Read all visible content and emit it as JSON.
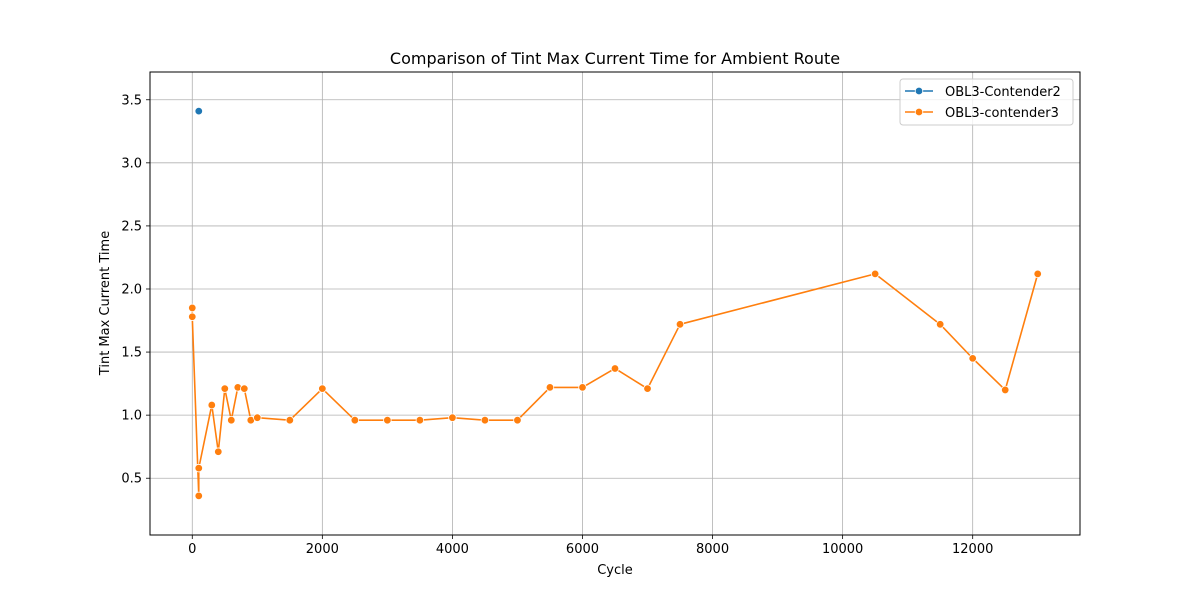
{
  "chart_data": {
    "type": "line",
    "title": "Comparison of Tint Max Current Time for Ambient Route",
    "xlabel": "Cycle",
    "ylabel": "Tint Max Current Time",
    "xlim": [
      -650,
      13650
    ],
    "ylim": [
      0.05,
      3.72
    ],
    "xticks": [
      0,
      2000,
      4000,
      6000,
      8000,
      10000,
      12000
    ],
    "xtick_labels": [
      "0",
      "2000",
      "4000",
      "6000",
      "8000",
      "10000",
      "12000"
    ],
    "yticks": [
      0.5,
      1.0,
      1.5,
      2.0,
      2.5,
      3.0,
      3.5
    ],
    "ytick_labels": [
      "0.5",
      "1.0",
      "1.5",
      "2.0",
      "2.5",
      "3.0",
      "3.5"
    ],
    "grid": true,
    "legend_position": "top-right",
    "series": [
      {
        "name": "OBL3-Contender2",
        "color": "#1f77b4",
        "points": [
          [
            100,
            3.41
          ]
        ]
      },
      {
        "name": "OBL3-contender3",
        "color": "#ff7f0e",
        "points": [
          [
            0,
            1.85
          ],
          [
            0,
            1.78
          ],
          [
            100,
            0.36
          ],
          [
            100,
            0.58
          ],
          [
            300,
            1.08
          ],
          [
            400,
            0.71
          ],
          [
            500,
            1.21
          ],
          [
            600,
            0.96
          ],
          [
            700,
            1.22
          ],
          [
            800,
            1.21
          ],
          [
            900,
            0.96
          ],
          [
            1000,
            0.98
          ],
          [
            1500,
            0.96
          ],
          [
            2000,
            1.21
          ],
          [
            2500,
            0.96
          ],
          [
            3000,
            0.96
          ],
          [
            3500,
            0.96
          ],
          [
            4000,
            0.98
          ],
          [
            4500,
            0.96
          ],
          [
            5000,
            0.96
          ],
          [
            5500,
            1.22
          ],
          [
            6000,
            1.22
          ],
          [
            6500,
            1.37
          ],
          [
            7000,
            1.21
          ],
          [
            7500,
            1.72
          ],
          [
            10500,
            2.12
          ],
          [
            11500,
            1.72
          ],
          [
            12000,
            1.45
          ],
          [
            12500,
            1.2
          ],
          [
            13000,
            2.12
          ]
        ]
      }
    ]
  }
}
